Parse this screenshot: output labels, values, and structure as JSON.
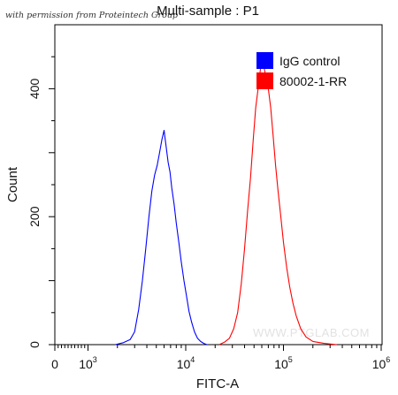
{
  "permission_note": "with permission from Proteintech Group",
  "watermark": "WWW.PTGLAB.COM",
  "chart_data": {
    "type": "line",
    "title": "Multi-sample : P1",
    "xlabel": "FITC-A",
    "ylabel": "Count",
    "x_scale": "log",
    "xlim": [
      1,
      1000000
    ],
    "ylim": [
      0,
      500
    ],
    "x_ticks": [
      {
        "value": 1,
        "base": "0",
        "exp": ""
      },
      {
        "value": 1000,
        "base": "10",
        "exp": "3"
      },
      {
        "value": 10000,
        "base": "10",
        "exp": "4"
      },
      {
        "value": 100000,
        "base": "10",
        "exp": "5"
      },
      {
        "value": 1000000,
        "base": "10",
        "exp": "6"
      }
    ],
    "y_ticks": [
      0,
      200,
      400
    ],
    "legend_position": "top-right",
    "series": [
      {
        "name": "IgG control",
        "color": "#0000ff",
        "x": [
          1900,
          2300,
          2700,
          3000,
          3300,
          3600,
          3900,
          4200,
          4500,
          4800,
          5100,
          5400,
          5700,
          6000,
          6300,
          6600,
          6900,
          7200,
          7600,
          8000,
          8500,
          9000,
          9600,
          10200,
          10800,
          11500,
          12300,
          13200,
          14200,
          15300,
          16500
        ],
        "y": [
          0,
          3,
          8,
          20,
          55,
          100,
          150,
          200,
          240,
          265,
          280,
          300,
          320,
          335,
          310,
          285,
          270,
          245,
          220,
          190,
          160,
          130,
          100,
          75,
          52,
          35,
          20,
          10,
          5,
          2,
          0
        ]
      },
      {
        "name": "80002-1-RR",
        "color": "#ff0000",
        "x": [
          22000,
          25000,
          28000,
          31000,
          34000,
          37000,
          40000,
          43000,
          46000,
          49000,
          52000,
          55000,
          58000,
          61000,
          64000,
          67000,
          70000,
          74000,
          78000,
          83000,
          88000,
          94000,
          100000,
          108000,
          116000,
          125000,
          135000,
          150000,
          170000,
          200000,
          260000,
          350000
        ],
        "y": [
          0,
          4,
          10,
          25,
          50,
          95,
          150,
          210,
          260,
          320,
          370,
          400,
          430,
          445,
          430,
          410,
          400,
          370,
          330,
          280,
          240,
          200,
          160,
          120,
          90,
          65,
          45,
          25,
          12,
          5,
          2,
          0
        ]
      }
    ]
  }
}
